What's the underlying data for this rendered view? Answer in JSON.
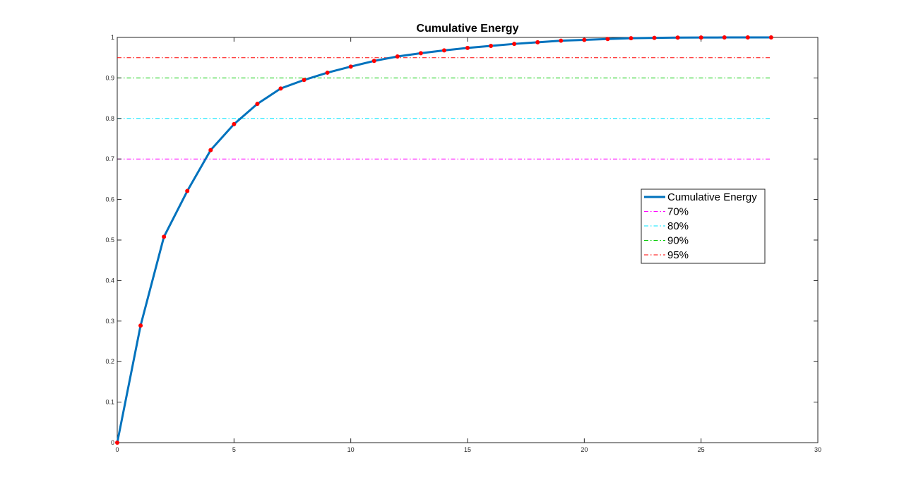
{
  "chart_data": {
    "type": "line",
    "title": "Cumulative Energy",
    "xlabel": "",
    "ylabel": "",
    "xlim": [
      0,
      30
    ],
    "ylim": [
      0,
      1
    ],
    "xticks": [
      0,
      5,
      10,
      15,
      20,
      25,
      30
    ],
    "yticks": [
      0,
      0.1,
      0.2,
      0.3,
      0.4,
      0.5,
      0.6,
      0.7,
      0.8,
      0.9,
      1
    ],
    "grid": false,
    "legend_position": "right",
    "series": [
      {
        "name": "Cumulative Energy",
        "color": "#0072BD",
        "marker_color": "#ff0000",
        "x": [
          0,
          1,
          2,
          3,
          4,
          5,
          6,
          7,
          8,
          9,
          10,
          11,
          12,
          13,
          14,
          15,
          16,
          17,
          18,
          19,
          20,
          21,
          22,
          23,
          24,
          25,
          26,
          27,
          28
        ],
        "values": [
          0,
          0.289,
          0.508,
          0.621,
          0.722,
          0.786,
          0.836,
          0.874,
          0.895,
          0.913,
          0.928,
          0.942,
          0.953,
          0.961,
          0.968,
          0.974,
          0.979,
          0.984,
          0.988,
          0.992,
          0.994,
          0.996,
          0.998,
          0.999,
          0.9995,
          0.9998,
          0.9999,
          1.0,
          1.0
        ]
      }
    ],
    "reference_lines": [
      {
        "name": "70%",
        "y": 0.7,
        "color": "#ff00ff"
      },
      {
        "name": "80%",
        "y": 0.8,
        "color": "#00e5ff"
      },
      {
        "name": "90%",
        "y": 0.9,
        "color": "#00cc00"
      },
      {
        "name": "95%",
        "y": 0.95,
        "color": "#ff0000"
      }
    ]
  }
}
